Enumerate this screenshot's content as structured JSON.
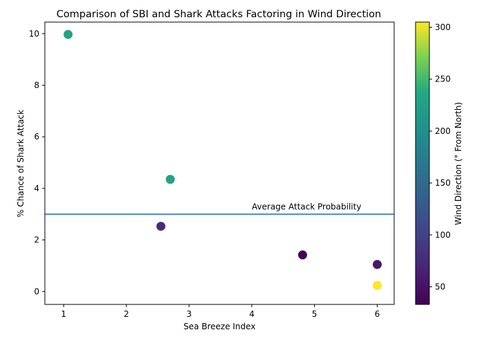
{
  "chart_data": {
    "type": "scatter",
    "title": "Comparison of SBI and Shark Attacks Factoring in Wind Direction",
    "xlabel": "Sea Breeze Index",
    "ylabel": "% Chance of Shark Attack",
    "xlim": [
      0.7,
      6.27
    ],
    "ylim": [
      -0.5,
      10.45
    ],
    "xticks": [
      1,
      2,
      3,
      4,
      5,
      6
    ],
    "yticks": [
      0,
      2,
      4,
      6,
      8,
      10
    ],
    "grid": false,
    "colormap": "viridis",
    "points": [
      {
        "x": 1.07,
        "y": 9.97,
        "wind_direction": 230
      },
      {
        "x": 2.7,
        "y": 4.35,
        "wind_direction": 230
      },
      {
        "x": 2.55,
        "y": 2.53,
        "wind_direction": 75
      },
      {
        "x": 4.81,
        "y": 1.42,
        "wind_direction": 35
      },
      {
        "x": 6.0,
        "y": 1.05,
        "wind_direction": 55
      },
      {
        "x": 6.0,
        "y": 0.24,
        "wind_direction": 305
      }
    ],
    "reference_line": {
      "y": 3.0,
      "label": "Average Attack Probability",
      "label_x": 4.0,
      "color": "#1f77b4"
    },
    "colorbar": {
      "label": "Wind Direction (° From North)",
      "min": 33,
      "max": 305,
      "ticks": [
        50,
        100,
        150,
        200,
        250,
        300
      ]
    }
  }
}
